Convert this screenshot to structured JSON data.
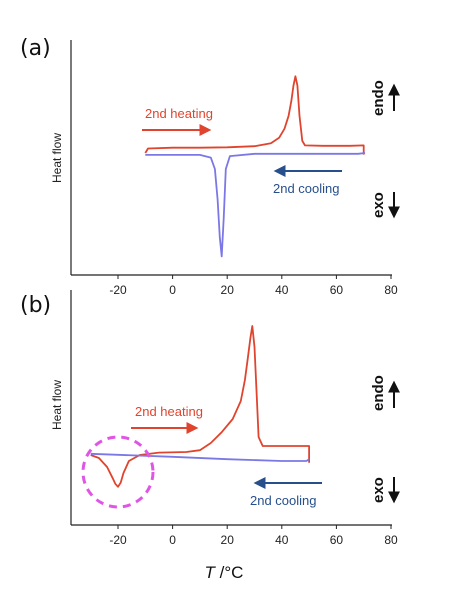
{
  "colors": {
    "heating": "#e0442e",
    "cooling": "#7b78e6",
    "arrow_cooling": "#274f8c",
    "highlight": "#e055e6",
    "axis": "#222222"
  },
  "xlabel_italic": "T",
  "xlabel_unit": " /°C",
  "chart_data": [
    {
      "panel": "(a)",
      "type": "line",
      "ylabel": "Heat flow",
      "xlim": [
        -35,
        80
      ],
      "xticks": [
        -20,
        0,
        20,
        40,
        60,
        80
      ],
      "xtick_labels": [
        "-20",
        "0",
        "20",
        "40",
        "60",
        "80"
      ],
      "annotations": {
        "heating": "2nd heating",
        "cooling": "2nd cooling",
        "endo": "endo",
        "exo": "exo"
      },
      "series": [
        {
          "name": "2nd heating",
          "x": [
            -10,
            -9,
            0,
            10,
            20,
            30,
            36,
            39,
            41,
            42.5,
            43.5,
            44.3,
            45,
            45.7,
            46.5,
            47.5,
            48.5,
            55,
            65,
            70,
            70
          ],
          "y": [
            -0.4,
            0.2,
            0.3,
            0.3,
            0.35,
            0.5,
            0.9,
            1.6,
            2.8,
            4.5,
            6.5,
            8.5,
            9.7,
            8.5,
            4.5,
            1.2,
            0.6,
            0.55,
            0.55,
            0.6,
            -0.6
          ]
        },
        {
          "name": "2nd cooling",
          "x": [
            -10,
            0,
            10,
            14,
            15.5,
            16.5,
            17.3,
            18,
            18.7,
            19.5,
            21,
            30,
            50,
            68,
            70.5
          ],
          "y": [
            -0.65,
            -0.65,
            -0.65,
            -1.0,
            -2.5,
            -6.5,
            -11.5,
            -14.0,
            -9.0,
            -2.5,
            -0.8,
            -0.5,
            -0.5,
            -0.5,
            -0.4
          ]
        }
      ]
    },
    {
      "panel": "(b)",
      "type": "line",
      "ylabel": "Heat flow",
      "xlim": [
        -35,
        80
      ],
      "xticks": [
        -20,
        0,
        20,
        40,
        60,
        80
      ],
      "xtick_labels": [
        "-20",
        "0",
        "20",
        "40",
        "60",
        "80"
      ],
      "annotations": {
        "heating": "2nd heating",
        "cooling": "2nd cooling",
        "endo": "endo",
        "exo": "exo"
      },
      "series": [
        {
          "name": "2nd heating",
          "x": [
            -30,
            -27,
            -24,
            -22,
            -21,
            -20,
            -19,
            -18,
            -16,
            -12,
            -5,
            5,
            10,
            14,
            18,
            22,
            25,
            26.5,
            27.5,
            28.5,
            29.2,
            30,
            30.8,
            31.5,
            33,
            40,
            50,
            50
          ],
          "y": [
            0.0,
            -0.5,
            -2.0,
            -3.8,
            -4.8,
            -5.3,
            -4.6,
            -3.0,
            -1.0,
            0.0,
            0.4,
            0.5,
            0.8,
            2.0,
            3.8,
            6.0,
            9.0,
            12.5,
            16.0,
            19.5,
            21.5,
            18.0,
            10.0,
            3.0,
            1.5,
            1.5,
            1.5,
            -1.3
          ]
        },
        {
          "name": "2nd cooling",
          "x": [
            -30,
            0,
            20,
            40,
            49,
            50
          ],
          "y": [
            0.2,
            -0.3,
            -0.7,
            -1.0,
            -1.0,
            -0.7
          ]
        }
      ]
    }
  ]
}
